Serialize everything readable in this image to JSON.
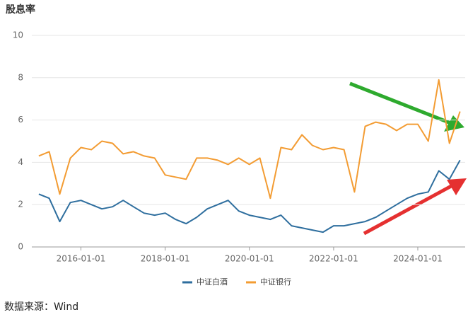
{
  "chart_data": {
    "type": "line",
    "title": "股息率",
    "x": [
      "2015-01-01",
      "2015-04-01",
      "2015-07-01",
      "2015-10-01",
      "2016-01-01",
      "2016-04-01",
      "2016-07-01",
      "2016-10-01",
      "2017-01-01",
      "2017-04-01",
      "2017-07-01",
      "2017-10-01",
      "2018-01-01",
      "2018-04-01",
      "2018-07-01",
      "2018-10-01",
      "2019-01-01",
      "2019-04-01",
      "2019-07-01",
      "2019-10-01",
      "2020-01-01",
      "2020-04-01",
      "2020-07-01",
      "2020-10-01",
      "2021-01-01",
      "2021-04-01",
      "2021-07-01",
      "2021-10-01",
      "2022-01-01",
      "2022-04-01",
      "2022-07-01",
      "2022-10-01",
      "2023-01-01",
      "2023-04-01",
      "2023-07-01",
      "2023-10-01",
      "2024-01-01",
      "2024-04-01",
      "2024-07-01",
      "2024-10-01",
      "2025-01-01"
    ],
    "series": [
      {
        "name": "中证白酒",
        "color": "#2e6e9e",
        "values": [
          2.5,
          2.3,
          1.2,
          2.1,
          2.2,
          2.0,
          1.8,
          1.9,
          2.2,
          1.9,
          1.6,
          1.5,
          1.6,
          1.3,
          1.1,
          1.4,
          1.8,
          2.0,
          2.2,
          1.7,
          1.5,
          1.4,
          1.3,
          1.5,
          1.0,
          0.9,
          0.8,
          0.7,
          1.0,
          1.0,
          1.1,
          1.2,
          1.4,
          1.7,
          2.0,
          2.3,
          2.5,
          2.6,
          3.6,
          3.2,
          4.1
        ]
      },
      {
        "name": "中证银行",
        "color": "#f39c33",
        "values": [
          4.3,
          4.5,
          2.5,
          4.2,
          4.7,
          4.6,
          5.0,
          4.9,
          4.4,
          4.5,
          4.3,
          4.2,
          3.4,
          3.3,
          3.2,
          4.2,
          4.2,
          4.1,
          3.9,
          4.2,
          3.9,
          4.2,
          2.3,
          4.7,
          4.6,
          5.3,
          4.8,
          4.6,
          4.7,
          4.6,
          2.6,
          5.7,
          5.9,
          5.8,
          5.5,
          5.8,
          5.8,
          5.0,
          7.9,
          4.9,
          6.4
        ]
      }
    ],
    "xlim": [
      "2014-11-01",
      "2025-02-15"
    ],
    "xticks": [
      "2016-01-01",
      "2018-01-01",
      "2020-01-01",
      "2022-01-01",
      "2024-01-01"
    ],
    "ylim": [
      0,
      10
    ],
    "yticks": [
      0,
      2,
      4,
      6,
      8,
      10
    ],
    "grid": true,
    "source": "数据来源：Wind"
  }
}
